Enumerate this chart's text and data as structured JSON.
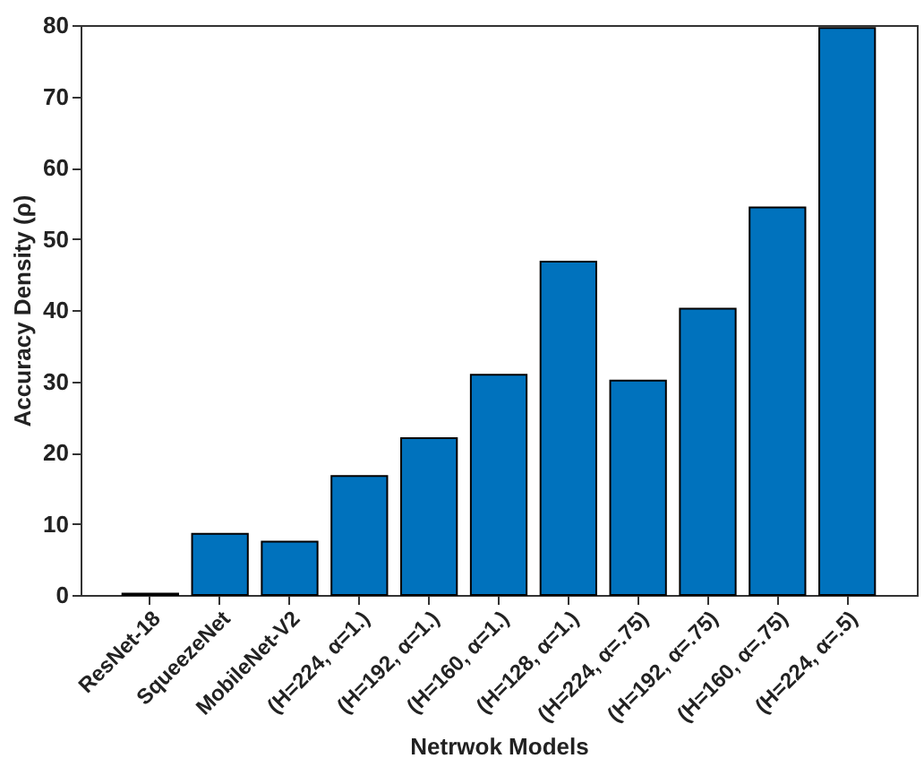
{
  "chart_data": {
    "type": "bar",
    "xlabel": "Netrwok Models",
    "ylabel": "Accuracy Density (ρ)",
    "categories": [
      "ResNet-18",
      "SqueezeNet",
      "MobileNet-V2",
      "(H=224, α=1.)",
      "(H=192, α=1.)",
      "(H=160, α=1.)",
      "(H=128, α=1.)",
      "(H=224, α=.75)",
      "(H=192, α=.75)",
      "(H=160, α=.75)",
      "(H=224, α=.5)"
    ],
    "values": [
      0.2,
      8.6,
      7.5,
      16.7,
      22,
      30.9,
      46.8,
      30.1,
      40.2,
      54.4,
      79.6
    ],
    "color": "#0072bd",
    "ylim": [
      0,
      80
    ],
    "yticks": [
      0,
      10,
      20,
      30,
      40,
      50,
      60,
      70,
      80
    ],
    "grid": false
  }
}
